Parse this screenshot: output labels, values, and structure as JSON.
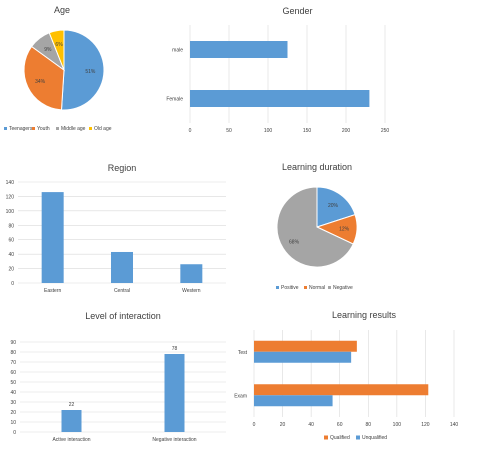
{
  "colors": {
    "blue": "#5b9bd5",
    "orange": "#ed7d31",
    "gray": "#a5a5a5",
    "yellow": "#ffc000",
    "axis": "#d9d9d9",
    "text": "#404040",
    "title": "#404040"
  },
  "chart_data": [
    {
      "id": "age",
      "type": "pie",
      "title": "Age",
      "categories": [
        "Teenagers",
        "Youth",
        "Middle age",
        "Old age"
      ],
      "values": [
        51,
        34,
        9,
        6
      ],
      "data_labels": [
        "51%",
        "34%",
        "9%",
        "6%"
      ],
      "legend": "bottom"
    },
    {
      "id": "gender",
      "type": "bar",
      "orientation": "horizontal",
      "title": "Gender",
      "categories": [
        "male",
        "Female"
      ],
      "values": [
        125,
        230
      ],
      "xlim": [
        0,
        250
      ],
      "ticks": [
        0,
        50,
        100,
        150,
        200,
        250
      ],
      "grid": true
    },
    {
      "id": "region",
      "type": "bar",
      "title": "Region",
      "categories": [
        "Eastern",
        "Central",
        "Western"
      ],
      "values": [
        126,
        43,
        26
      ],
      "ylim": [
        0,
        140
      ],
      "ticks": [
        0,
        20,
        40,
        60,
        80,
        100,
        120,
        140
      ],
      "grid": true
    },
    {
      "id": "learning_duration",
      "type": "pie",
      "title": "Learning duration",
      "categories": [
        "Positive",
        "Normal",
        "Negative"
      ],
      "values": [
        20,
        12,
        68
      ],
      "data_labels": [
        "20%",
        "12%",
        "68%"
      ],
      "legend": "bottom"
    },
    {
      "id": "interaction",
      "type": "bar",
      "title": "Level of interaction",
      "categories": [
        "Active interaction",
        "Negative interaction"
      ],
      "values": [
        22,
        78
      ],
      "data_labels": [
        "22",
        "78"
      ],
      "ylim": [
        0,
        90
      ],
      "ticks": [
        0,
        10,
        20,
        30,
        40,
        50,
        60,
        70,
        80,
        90
      ],
      "grid": true
    },
    {
      "id": "learning_results",
      "type": "bar",
      "orientation": "horizontal",
      "title": "Learning results",
      "categories": [
        "Test",
        "Exam"
      ],
      "series": [
        {
          "name": "Qualified",
          "values": [
            72,
            122
          ]
        },
        {
          "name": "Unqualified",
          "values": [
            68,
            55
          ]
        }
      ],
      "xlim": [
        0,
        140
      ],
      "ticks": [
        0,
        20,
        40,
        60,
        80,
        100,
        120,
        140
      ],
      "grid": true,
      "legend": "bottom"
    }
  ]
}
